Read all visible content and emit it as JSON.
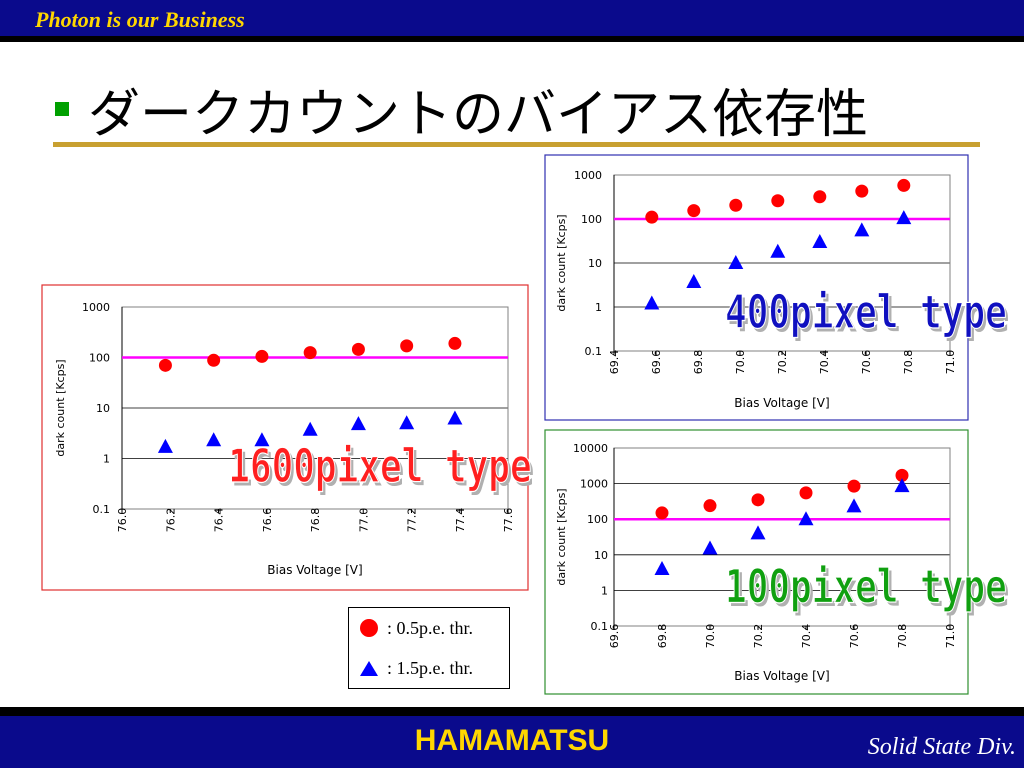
{
  "header": {
    "title": "Photon is our Business"
  },
  "slide": {
    "title": "ダークカウントのバイアス依存性"
  },
  "legend": {
    "circle_label": ": 0.5p.e. thr.",
    "triangle_label": ": 1.5p.e. thr."
  },
  "footer": {
    "brand": "HAMAMATSU",
    "division": "Solid State Div."
  },
  "colors": {
    "header_bg": "#0a0a8c",
    "header_text": "#ffd700",
    "circle": "#ff0000",
    "triangle": "#0000ff",
    "reference_line": "#ff00ff"
  },
  "chart_data": [
    {
      "type": "scatter",
      "label": "1600pixel type",
      "label_color": "#ff2020",
      "frame_color": "#e03030",
      "xlabel": "Bias Voltage [V]",
      "ylabel": "dark count [Kcps]",
      "yscale": "log",
      "xlim": [
        76.0,
        77.6
      ],
      "ylim": [
        0.1,
        1000
      ],
      "xticks": [
        "76.0",
        "76.2",
        "76.4",
        "76.6",
        "76.8",
        "77.0",
        "77.2",
        "77.4",
        "77.6"
      ],
      "yticks": [
        "0.1",
        "1",
        "10",
        "100",
        "1000"
      ],
      "reference_y": 100,
      "series": [
        {
          "marker": "circle",
          "x": [
            76.18,
            76.38,
            76.58,
            76.78,
            76.98,
            77.18,
            77.38
          ],
          "y": [
            70,
            88,
            105,
            125,
            145,
            170,
            190
          ]
        },
        {
          "marker": "triangle",
          "x": [
            76.18,
            76.38,
            76.58,
            76.78,
            76.98,
            77.18,
            77.38
          ],
          "y": [
            1.7,
            2.3,
            2.3,
            3.7,
            4.8,
            5.0,
            6.2
          ]
        }
      ]
    },
    {
      "type": "scatter",
      "label": "400pixel type",
      "label_color": "#1010c0",
      "frame_color": "#3030b0",
      "xlabel": "Bias Voltage [V]",
      "ylabel": "dark count [Kcps]",
      "yscale": "log",
      "xlim": [
        69.4,
        71.0
      ],
      "ylim": [
        0.1,
        1000
      ],
      "xticks": [
        "69.4",
        "69.6",
        "69.8",
        "70.0",
        "70.2",
        "70.4",
        "70.6",
        "70.8",
        "71.0"
      ],
      "yticks": [
        "0.1",
        "1",
        "10",
        "100",
        "1000"
      ],
      "reference_y": 100,
      "series": [
        {
          "marker": "circle",
          "x": [
            69.58,
            69.78,
            69.98,
            70.18,
            70.38,
            70.58,
            70.78
          ],
          "y": [
            110,
            155,
            205,
            260,
            320,
            430,
            580
          ]
        },
        {
          "marker": "triangle",
          "x": [
            69.58,
            69.78,
            69.98,
            70.18,
            70.38,
            70.58,
            70.78
          ],
          "y": [
            1.2,
            3.7,
            10,
            18,
            30,
            55,
            105
          ]
        }
      ]
    },
    {
      "type": "scatter",
      "label": "100pixel type",
      "label_color": "#10a010",
      "frame_color": "#309030",
      "xlabel": "Bias Voltage [V]",
      "ylabel": "dark count [Kcps]",
      "yscale": "log",
      "xlim": [
        69.6,
        71.0
      ],
      "ylim": [
        0.1,
        10000
      ],
      "xticks": [
        "69.6",
        "69.8",
        "70.0",
        "70.2",
        "70.4",
        "70.6",
        "70.8",
        "71.0"
      ],
      "yticks": [
        "0.1",
        "1",
        "10",
        "100",
        "1000",
        "10000"
      ],
      "reference_y": 100,
      "series": [
        {
          "marker": "circle",
          "x": [
            69.8,
            70.0,
            70.2,
            70.4,
            70.6,
            70.8
          ],
          "y": [
            150,
            240,
            350,
            550,
            850,
            1700
          ]
        },
        {
          "marker": "triangle",
          "x": [
            69.8,
            70.0,
            70.2,
            70.4,
            70.6,
            70.8
          ],
          "y": [
            4,
            15,
            40,
            100,
            230,
            850
          ]
        }
      ]
    }
  ]
}
